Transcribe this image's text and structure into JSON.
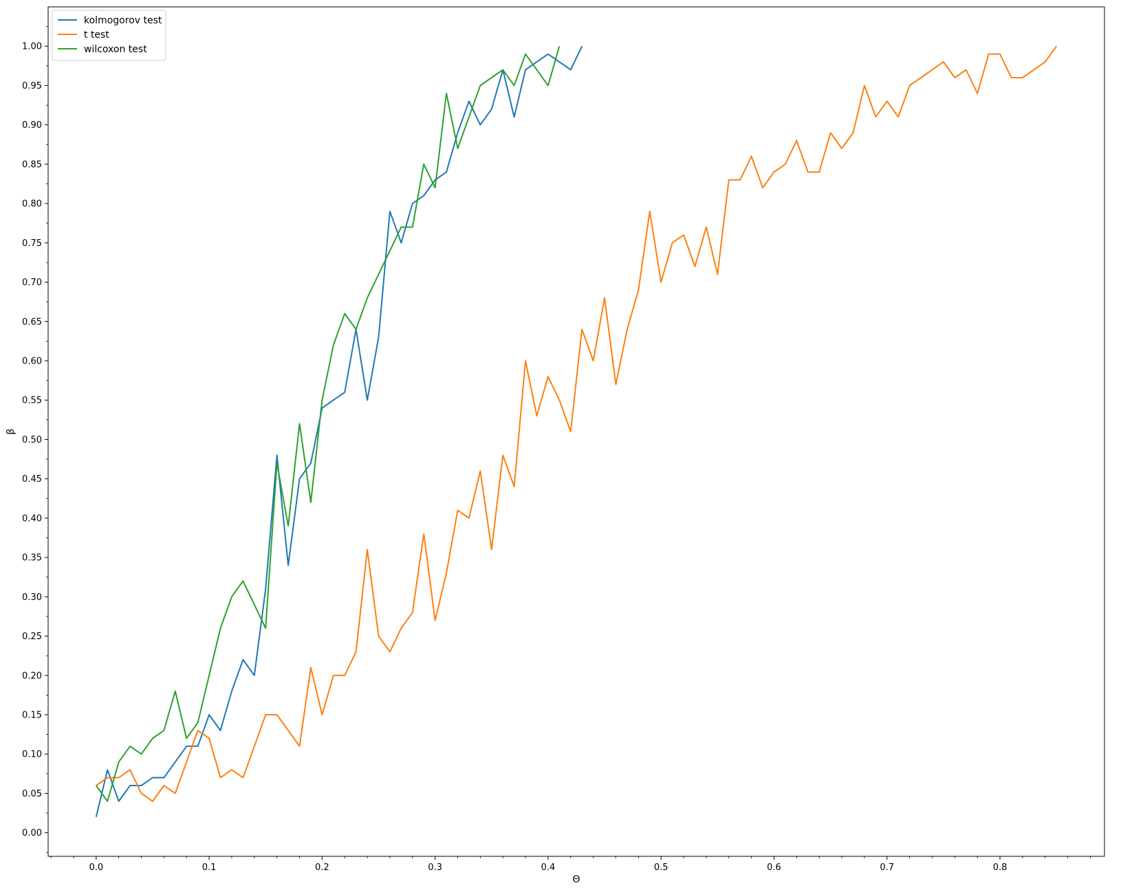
{
  "chart_data": {
    "type": "line",
    "title": "",
    "xlabel": "Θ",
    "ylabel": "β",
    "xlim": [
      -0.0425,
      0.8925
    ],
    "ylim": [
      -0.03,
      1.05
    ],
    "xticks": [
      0.0,
      0.1,
      0.2,
      0.3,
      0.4,
      0.5,
      0.6,
      0.7,
      0.8
    ],
    "xtick_labels": [
      "0.0",
      "0.1",
      "0.2",
      "0.3",
      "0.4",
      "0.5",
      "0.6",
      "0.7",
      "0.8"
    ],
    "yticks": [
      0.0,
      0.05,
      0.1,
      0.15,
      0.2,
      0.25,
      0.3,
      0.35,
      0.4,
      0.45,
      0.5,
      0.55,
      0.6,
      0.65,
      0.7,
      0.75,
      0.8,
      0.85,
      0.9,
      0.95,
      1.0
    ],
    "ytick_labels": [
      "0.00",
      "0.05",
      "0.10",
      "0.15",
      "0.20",
      "0.25",
      "0.30",
      "0.35",
      "0.40",
      "0.45",
      "0.50",
      "0.55",
      "0.60",
      "0.65",
      "0.70",
      "0.75",
      "0.80",
      "0.85",
      "0.90",
      "0.95",
      "1.00"
    ],
    "grid": false,
    "legend_position": "top-left",
    "series": [
      {
        "name": "kolmogorov test",
        "color": "#1f77b4",
        "x": [
          0.0,
          0.01,
          0.02,
          0.03,
          0.04,
          0.05,
          0.06,
          0.07,
          0.08,
          0.09,
          0.1,
          0.11,
          0.12,
          0.13,
          0.14,
          0.15,
          0.16,
          0.17,
          0.18,
          0.19,
          0.2,
          0.21,
          0.22,
          0.23,
          0.24,
          0.25,
          0.26,
          0.27,
          0.28,
          0.29,
          0.3,
          0.31,
          0.32,
          0.33,
          0.34,
          0.35,
          0.36,
          0.37,
          0.38,
          0.39,
          0.4,
          0.41,
          0.42,
          0.43
        ],
        "y": [
          0.02,
          0.08,
          0.04,
          0.06,
          0.06,
          0.07,
          0.07,
          0.09,
          0.11,
          0.11,
          0.15,
          0.13,
          0.18,
          0.22,
          0.2,
          0.31,
          0.48,
          0.34,
          0.45,
          0.47,
          0.54,
          0.55,
          0.56,
          0.64,
          0.55,
          0.63,
          0.79,
          0.75,
          0.8,
          0.81,
          0.83,
          0.84,
          0.89,
          0.93,
          0.9,
          0.92,
          0.97,
          0.91,
          0.97,
          0.98,
          0.99,
          0.98,
          0.97,
          1.0
        ]
      },
      {
        "name": "t test",
        "color": "#ff7f0e",
        "x": [
          0.0,
          0.01,
          0.02,
          0.03,
          0.04,
          0.05,
          0.06,
          0.07,
          0.08,
          0.09,
          0.1,
          0.11,
          0.12,
          0.13,
          0.14,
          0.15,
          0.16,
          0.17,
          0.18,
          0.19,
          0.2,
          0.21,
          0.22,
          0.23,
          0.24,
          0.25,
          0.26,
          0.27,
          0.28,
          0.29,
          0.3,
          0.31,
          0.32,
          0.33,
          0.34,
          0.35,
          0.36,
          0.37,
          0.38,
          0.39,
          0.4,
          0.41,
          0.42,
          0.43,
          0.44,
          0.45,
          0.46,
          0.47,
          0.48,
          0.49,
          0.5,
          0.51,
          0.52,
          0.53,
          0.54,
          0.55,
          0.56,
          0.57,
          0.58,
          0.59,
          0.6,
          0.61,
          0.62,
          0.63,
          0.64,
          0.65,
          0.66,
          0.67,
          0.68,
          0.69,
          0.7,
          0.71,
          0.72,
          0.73,
          0.74,
          0.75,
          0.76,
          0.77,
          0.78,
          0.79,
          0.8,
          0.81,
          0.82,
          0.83,
          0.84,
          0.85
        ],
        "y": [
          0.06,
          0.07,
          0.07,
          0.08,
          0.05,
          0.04,
          0.06,
          0.05,
          0.09,
          0.13,
          0.12,
          0.07,
          0.08,
          0.07,
          0.11,
          0.15,
          0.15,
          0.13,
          0.11,
          0.21,
          0.15,
          0.2,
          0.2,
          0.23,
          0.36,
          0.25,
          0.23,
          0.26,
          0.28,
          0.38,
          0.27,
          0.33,
          0.41,
          0.4,
          0.46,
          0.36,
          0.48,
          0.44,
          0.6,
          0.53,
          0.58,
          0.55,
          0.51,
          0.64,
          0.6,
          0.68,
          0.57,
          0.64,
          0.69,
          0.79,
          0.7,
          0.75,
          0.76,
          0.72,
          0.77,
          0.71,
          0.83,
          0.83,
          0.86,
          0.82,
          0.84,
          0.85,
          0.88,
          0.84,
          0.84,
          0.89,
          0.87,
          0.89,
          0.95,
          0.91,
          0.93,
          0.91,
          0.95,
          0.96,
          0.97,
          0.98,
          0.96,
          0.97,
          0.94,
          0.99,
          0.99,
          0.96,
          0.96,
          0.97,
          0.98,
          1.0
        ]
      },
      {
        "name": "wilcoxon test",
        "color": "#2ca02c",
        "x": [
          0.0,
          0.01,
          0.02,
          0.03,
          0.04,
          0.05,
          0.06,
          0.07,
          0.08,
          0.09,
          0.1,
          0.11,
          0.12,
          0.13,
          0.14,
          0.15,
          0.16,
          0.17,
          0.18,
          0.19,
          0.2,
          0.21,
          0.22,
          0.23,
          0.24,
          0.25,
          0.26,
          0.27,
          0.28,
          0.29,
          0.3,
          0.31,
          0.32,
          0.33,
          0.34,
          0.35,
          0.36,
          0.37,
          0.38,
          0.39,
          0.4,
          0.41
        ],
        "y": [
          0.06,
          0.04,
          0.09,
          0.11,
          0.1,
          0.12,
          0.13,
          0.18,
          0.12,
          0.14,
          0.2,
          0.26,
          0.3,
          0.32,
          0.29,
          0.26,
          0.47,
          0.39,
          0.52,
          0.42,
          0.55,
          0.62,
          0.66,
          0.64,
          0.68,
          0.71,
          0.74,
          0.77,
          0.77,
          0.85,
          0.82,
          0.94,
          0.87,
          0.91,
          0.95,
          0.96,
          0.97,
          0.95,
          0.99,
          0.97,
          0.95,
          1.0
        ]
      }
    ]
  }
}
